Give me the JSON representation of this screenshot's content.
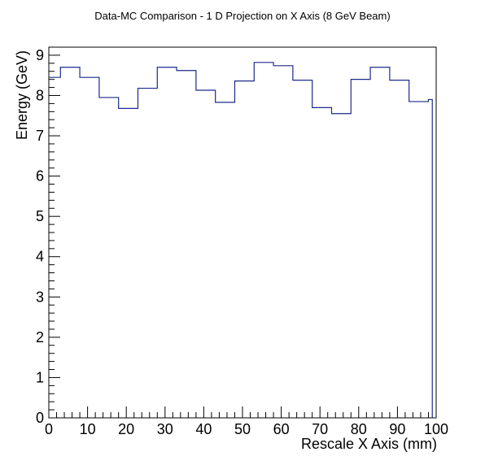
{
  "chart_data": {
    "type": "step",
    "title": "Data-MC Comparison - 1 D Projection on X Axis (8 GeV Beam)",
    "xlabel": "Rescale X Axis (mm)",
    "ylabel": "Energy (GeV)",
    "xlim": [
      0,
      100
    ],
    "ylim": [
      0,
      9.2
    ],
    "x_ticks": [
      0,
      10,
      20,
      30,
      40,
      50,
      60,
      70,
      80,
      90,
      100
    ],
    "y_ticks": [
      0,
      1,
      2,
      3,
      4,
      5,
      6,
      7,
      8,
      9
    ],
    "x_minor_step": 2,
    "y_minor_step": 0.2,
    "grid": false,
    "line_color": "#1c2a8c",
    "bins": [
      {
        "x_low": 0,
        "x_high": 3,
        "value": 8.45
      },
      {
        "x_low": 3,
        "x_high": 8,
        "value": 8.7
      },
      {
        "x_low": 8,
        "x_high": 13,
        "value": 8.45
      },
      {
        "x_low": 13,
        "x_high": 18,
        "value": 7.95
      },
      {
        "x_low": 18,
        "x_high": 23,
        "value": 7.68
      },
      {
        "x_low": 23,
        "x_high": 28,
        "value": 8.18
      },
      {
        "x_low": 28,
        "x_high": 33,
        "value": 8.7
      },
      {
        "x_low": 33,
        "x_high": 38,
        "value": 8.62
      },
      {
        "x_low": 38,
        "x_high": 43,
        "value": 8.13
      },
      {
        "x_low": 43,
        "x_high": 48,
        "value": 7.83
      },
      {
        "x_low": 48,
        "x_high": 53,
        "value": 8.36
      },
      {
        "x_low": 53,
        "x_high": 58,
        "value": 8.82
      },
      {
        "x_low": 58,
        "x_high": 63,
        "value": 8.74
      },
      {
        "x_low": 63,
        "x_high": 68,
        "value": 8.38
      },
      {
        "x_low": 68,
        "x_high": 73,
        "value": 7.7
      },
      {
        "x_low": 73,
        "x_high": 78,
        "value": 7.55
      },
      {
        "x_low": 78,
        "x_high": 83,
        "value": 8.4
      },
      {
        "x_low": 83,
        "x_high": 88,
        "value": 8.7
      },
      {
        "x_low": 88,
        "x_high": 93,
        "value": 8.38
      },
      {
        "x_low": 93,
        "x_high": 98,
        "value": 7.85
      },
      {
        "x_low": 98,
        "x_high": 99,
        "value": 7.9
      }
    ]
  }
}
